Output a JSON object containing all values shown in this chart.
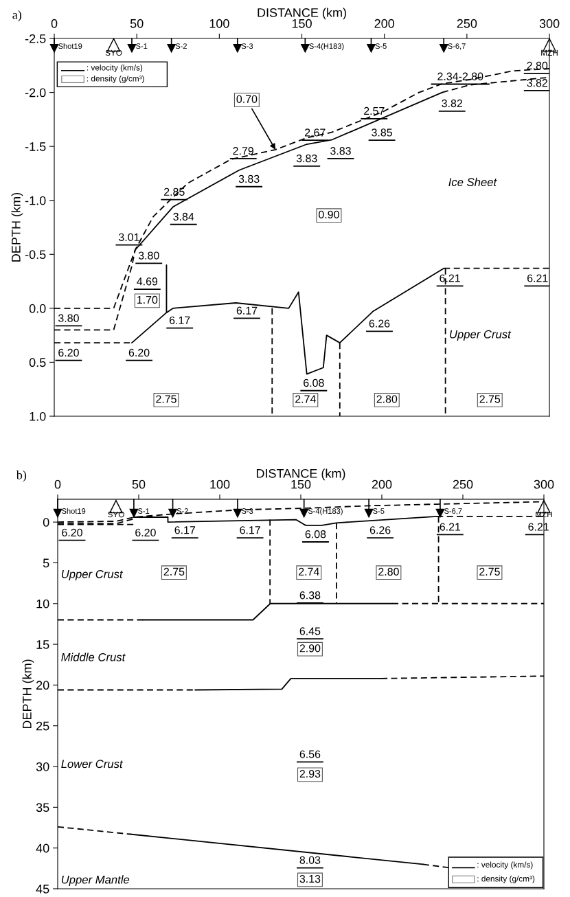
{
  "chart_data": [
    {
      "type": "line",
      "title": "a)",
      "xlabel": "DISTANCE (km)",
      "ylabel": "DEPTH (km)",
      "xlim": [
        0,
        300
      ],
      "xticks": [
        0,
        50,
        100,
        150,
        200,
        250,
        300
      ],
      "ylim": [
        1.0,
        -2.5
      ],
      "yticks": [
        -2.5,
        {
          "value": -2.0,
          "label": "-2.0"
        },
        -1.5,
        {
          "value": -1.0,
          "label": "-1.0"
        },
        -0.5,
        {
          "value": 0.0,
          "label": "0.0"
        },
        0.5,
        {
          "value": 1.0,
          "label": "1.0"
        }
      ],
      "series": [
        {
          "color": "#000000",
          "line_style": "dashed",
          "x": [
            0,
            36,
            49,
            60,
            72,
            81,
            107,
            134,
            153,
            168,
            199,
            221,
            235,
            252,
            278,
            300
          ],
          "values": [
            0.0,
            0.0,
            -0.54,
            -0.85,
            -1.03,
            -1.16,
            -1.38,
            -1.47,
            -1.58,
            -1.63,
            -1.82,
            -2.0,
            -2.08,
            -2.12,
            -2.2,
            -2.22
          ]
        },
        {
          "color": "#000000",
          "line_style": "dashed",
          "x": [
            0,
            36,
            47,
            49
          ],
          "values": [
            0.2,
            0.2,
            -0.39,
            -0.54
          ]
        },
        {
          "color": "#000000",
          "line_style": "dashed",
          "x": [
            235,
            252,
            300
          ],
          "values": [
            -2.0,
            -2.07,
            -2.14
          ]
        },
        {
          "color": "#000000",
          "line_style": "solid",
          "x": [
            49,
            72,
            112,
            153,
            168,
            235
          ],
          "values": [
            -0.54,
            -0.94,
            -1.28,
            -1.52,
            -1.56,
            -2.0
          ]
        },
        {
          "color": "#000000",
          "line_style": "solid",
          "x": [
            68,
            68
          ],
          "values": [
            -0.4,
            0.04
          ]
        },
        {
          "color": "#000000",
          "line_style": "dashed",
          "x": [
            0,
            47
          ],
          "values": [
            0.32,
            0.32
          ]
        },
        {
          "color": "#000000",
          "line_style": "solid",
          "x": [
            47,
            68,
            72,
            110,
            142,
            148,
            153,
            163,
            165,
            173,
            193,
            236
          ],
          "values": [
            0.32,
            0.04,
            0.0,
            -0.05,
            0.0,
            -0.15,
            0.61,
            0.55,
            0.25,
            0.32,
            0.03,
            -0.37
          ]
        },
        {
          "color": "#000000",
          "line_style": "dashed",
          "x": [
            236,
            300
          ],
          "values": [
            -0.37,
            -0.37
          ]
        },
        {
          "color": "#000000",
          "line_style": "dashed",
          "x": [
            132,
            132
          ],
          "values": [
            0.0,
            1.0
          ]
        },
        {
          "color": "#000000",
          "line_style": "dashed",
          "x": [
            173,
            173
          ],
          "values": [
            0.32,
            1.0
          ]
        },
        {
          "color": "#000000",
          "line_style": "dashed",
          "x": [
            237,
            237
          ],
          "values": [
            -0.37,
            1.0
          ]
        },
        {
          "type": "scatter",
          "color": "#000000",
          "marker": "triangle_down",
          "x": [
            0,
            47,
            71,
            111,
            152,
            192,
            236
          ],
          "values": [
            -2.41,
            -2.41,
            -2.41,
            -2.41,
            -2.41,
            -2.41,
            -2.41
          ]
        },
        {
          "type": "scatter",
          "color": "#ffffff",
          "marker": "triangle",
          "x": [
            36,
            300
          ],
          "values": [
            -2.44,
            -2.44
          ]
        }
      ],
      "annotations": [
        {
          "text": "Shot19",
          "x": 0,
          "y": -2.41
        },
        {
          "text": "S-1",
          "x": 47,
          "y": -2.41
        },
        {
          "text": "S-2",
          "x": 71,
          "y": -2.41
        },
        {
          "text": "S-3",
          "x": 111,
          "y": -2.41
        },
        {
          "text": "S-4(H183)",
          "x": 152,
          "y": -2.41
        },
        {
          "text": "S-5",
          "x": 192,
          "y": -2.41
        },
        {
          "text": "S-6,7",
          "x": 236,
          "y": -2.41
        },
        {
          "text": "SYO",
          "x": 36,
          "y": -2.44
        },
        {
          "text": "MZH",
          "x": 300,
          "y": -2.44
        },
        {
          "text": "0.70",
          "x": 134,
          "y": -1.47
        },
        "2.80",
        "3.82",
        "2.34-2.80",
        "3.82",
        "2.57",
        "3.85",
        "2.67",
        "3.83",
        "3.83",
        "2.79",
        "3.83",
        "2.85",
        "3.84",
        "3.01",
        "3.80",
        "4.69",
        "3.80",
        "6.20",
        "6.20",
        "6.17",
        "6.17",
        "6.08",
        "6.26",
        "6.21",
        "6.21",
        "0.90",
        "1.70",
        "2.75",
        "2.74",
        "2.80",
        "2.75",
        "Ice Sheet",
        "Upper Crust",
        ": velocity (km/s)",
        ": density (g/cm³)"
      ]
    },
    {
      "type": "line",
      "title": "b)",
      "xlabel": "DISTANCE (km)",
      "ylabel": "DEPTH (km)",
      "xlim": [
        0,
        300
      ],
      "xticks": [
        0,
        50,
        100,
        150,
        200,
        250,
        300
      ],
      "ylim": [
        45,
        -2.8
      ],
      "yticks": [
        0,
        5,
        10,
        15,
        20,
        25,
        30,
        35,
        40,
        45
      ],
      "series": [
        {
          "color": "#000000",
          "line_style": "dashed",
          "x": [
            0,
            36,
            47,
            71,
            112,
            152,
            192,
            234,
            300
          ],
          "values": [
            0.0,
            -0.1,
            -0.6,
            -1.0,
            -1.5,
            -1.7,
            -2.0,
            -2.2,
            -2.5
          ]
        },
        {
          "color": "#000000",
          "line_style": "dashed",
          "x": [
            0,
            36,
            47
          ],
          "values": [
            0.2,
            0.2,
            -0.4
          ]
        },
        {
          "color": "#000000",
          "line_style": "dashed",
          "x": [
            0,
            47
          ],
          "values": [
            0.3,
            0.3
          ]
        },
        {
          "color": "#000000",
          "line_style": "solid",
          "x": [
            47,
            68,
            68,
            147,
            153,
            163,
            172,
            234
          ],
          "values": [
            -0.6,
            -0.6,
            0.0,
            -0.3,
            0.4,
            0.4,
            0.1,
            -0.7
          ]
        },
        {
          "color": "#000000",
          "line_style": "dashed",
          "x": [
            234,
            300
          ],
          "values": [
            -0.7,
            -0.7
          ]
        },
        {
          "color": "#000000",
          "line_style": "dashed",
          "x": [
            0,
            52.4
          ],
          "values": [
            12.0,
            12.0
          ]
        },
        {
          "color": "#000000",
          "line_style": "solid",
          "x": [
            52.4,
            120.5,
            131.2,
            206.4
          ],
          "values": [
            12.0,
            12.0,
            10.0,
            10.0
          ]
        },
        {
          "color": "#000000",
          "line_style": "dashed",
          "x": [
            206.4,
            300
          ],
          "values": [
            10.0,
            10.0
          ]
        },
        {
          "color": "#000000",
          "line_style": "dashed",
          "x": [
            0,
            84.8
          ],
          "values": [
            20.6,
            20.6
          ]
        },
        {
          "color": "#000000",
          "line_style": "solid",
          "x": [
            84.8,
            138.3,
            143.9,
            199.6
          ],
          "values": [
            20.6,
            20.5,
            19.2,
            19.2
          ]
        },
        {
          "color": "#000000",
          "line_style": "dashed",
          "x": [
            199.6,
            300
          ],
          "values": [
            19.2,
            18.9
          ]
        },
        {
          "color": "#000000",
          "line_style": "dashed",
          "x": [
            0,
            44.6
          ],
          "values": [
            37.4,
            38.3
          ]
        },
        {
          "color": "#000000",
          "line_style": "solid",
          "x": [
            44.6,
            225.4
          ],
          "values": [
            38.3,
            42.0
          ]
        },
        {
          "color": "#000000",
          "line_style": "dashed",
          "x": [
            225.4,
            241
          ],
          "values": [
            42.0,
            42.4
          ]
        },
        {
          "color": "#000000",
          "line_style": "dashed",
          "x": [
            131,
            131
          ],
          "values": [
            -0.3,
            10.0
          ]
        },
        {
          "color": "#000000",
          "line_style": "dashed",
          "x": [
            172,
            172
          ],
          "values": [
            0.1,
            10.0
          ]
        },
        {
          "color": "#000000",
          "line_style": "dashed",
          "x": [
            235,
            235
          ],
          "values": [
            -0.7,
            10.0
          ]
        },
        {
          "type": "scatter",
          "color": "#000000",
          "marker": "triangle_down",
          "x": [
            0,
            47,
            71,
            111,
            152,
            192,
            236
          ],
          "values": [
            -1.1,
            -1.1,
            -1.1,
            -1.1,
            -1.1,
            -1.1,
            -1.1
          ]
        },
        {
          "type": "scatter",
          "color": "#ffffff",
          "marker": "triangle",
          "x": [
            36,
            300
          ],
          "values": [
            -1.9,
            -1.9
          ]
        }
      ],
      "annotations": [
        {
          "text": "Shot19",
          "x": 0,
          "y": -1.1
        },
        {
          "text": "S-1",
          "x": 47,
          "y": -1.1
        },
        {
          "text": "S-2",
          "x": 71,
          "y": -1.1
        },
        {
          "text": "S-3",
          "x": 111,
          "y": -1.1
        },
        {
          "text": "S-4(H183)",
          "x": 152,
          "y": -1.1
        },
        {
          "text": "S-5",
          "x": 192,
          "y": -1.1
        },
        {
          "text": "S-6,7",
          "x": 236,
          "y": -1.1
        },
        {
          "text": "SYO",
          "x": 36,
          "y": -1.9
        },
        {
          "text": "MZH",
          "x": 300,
          "y": -1.9
        },
        "6.20",
        "6.20",
        "6.17",
        "6.17",
        "6.08",
        "6.26",
        "6.21",
        "6.21",
        "6.38",
        "6.45",
        "6.56",
        "8.03",
        "2.75",
        "2.74",
        "2.80",
        "2.75",
        "2.90",
        "2.93",
        "3.13",
        "Upper Crust",
        "Middle Crust",
        "Lower Crust",
        "Upper Mantle",
        ": velocity (km/s)",
        ": density (g/cm³)"
      ]
    }
  ]
}
